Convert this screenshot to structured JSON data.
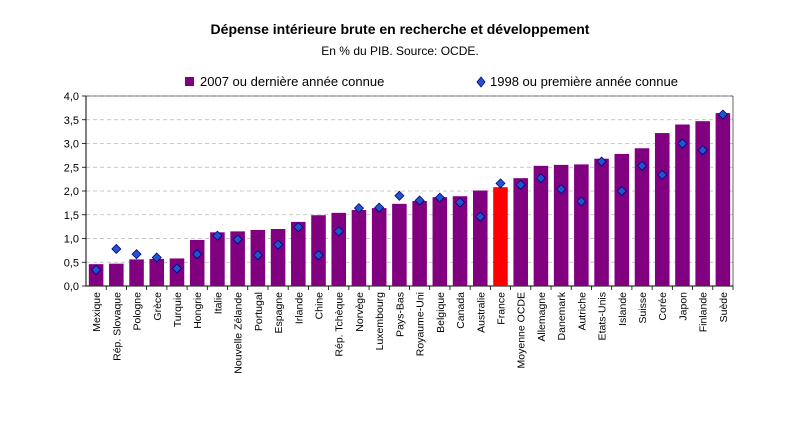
{
  "chart_data": {
    "type": "bar",
    "title": "Dépense intérieure brute en recherche et développement",
    "subtitle": "En % du PIB. Source: OCDE.",
    "xlabel": "",
    "ylabel": "",
    "ylim": [
      0,
      4
    ],
    "y_ticks": [
      "0,0",
      "0,5",
      "1,0",
      "1,5",
      "2,0",
      "2,5",
      "3,0",
      "3,5",
      "4,0"
    ],
    "grid": true,
    "legend_position": "top",
    "categories": [
      "Mexique",
      "Rép. Slovaque",
      "Pologne",
      "Grèce",
      "Turquie",
      "Hongrie",
      "Italie",
      "Nouvelle Zélande",
      "Portugal",
      "Espagne",
      "Irlande",
      "Chine",
      "Rép. Tchèque",
      "Norvège",
      "Luxembourg",
      "Pays-Bas",
      "Royaume-Uni",
      "Belgique",
      "Canada",
      "Australie",
      "France",
      "Moyenne OCDE",
      "Allemagne",
      "Danemark",
      "Autriche",
      "Etats-Unis",
      "Islande",
      "Suisse",
      "Corée",
      "Japon",
      "Finlande",
      "Suède"
    ],
    "highlight_category": "France",
    "series": [
      {
        "name": "2007 ou dernière année connue",
        "kind": "bar",
        "color": "#800080",
        "highlight_color": "#ff0000",
        "values": [
          0.46,
          0.47,
          0.56,
          0.57,
          0.58,
          0.97,
          1.13,
          1.15,
          1.18,
          1.2,
          1.35,
          1.49,
          1.54,
          1.6,
          1.64,
          1.73,
          1.79,
          1.87,
          1.89,
          2.01,
          2.08,
          2.27,
          2.53,
          2.55,
          2.56,
          2.68,
          2.78,
          2.9,
          3.22,
          3.4,
          3.47,
          3.64
        ]
      },
      {
        "name": "1998 ou première année connue",
        "kind": "marker",
        "color": "#2255cc",
        "values": [
          0.34,
          0.78,
          0.67,
          0.6,
          0.37,
          0.67,
          1.06,
          0.98,
          0.65,
          0.87,
          1.24,
          0.65,
          1.15,
          1.64,
          1.65,
          1.9,
          1.8,
          1.86,
          1.76,
          1.46,
          2.16,
          2.13,
          2.27,
          2.04,
          1.78,
          2.62,
          2.0,
          2.53,
          2.34,
          3.0,
          2.86,
          3.61
        ]
      }
    ]
  }
}
